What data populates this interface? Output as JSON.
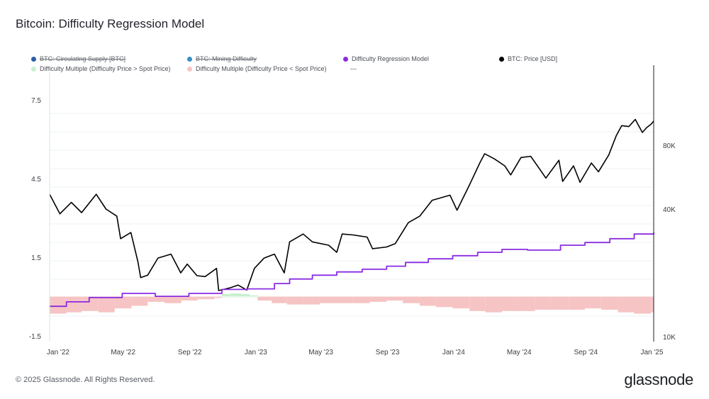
{
  "title": "Bitcoin: Difficulty Regression Model",
  "legend": [
    {
      "label": "BTC: Circulating Supply [BTC]",
      "color": "#2c5ea8",
      "disabled": true
    },
    {
      "label": "BTC: Mining Difficulty",
      "color": "#3a8fc6",
      "disabled": true
    },
    {
      "label": "Difficulty Regression Model",
      "color": "#8a2be2",
      "disabled": false
    },
    {
      "label": "BTC: Price [USD]",
      "color": "#000000",
      "disabled": false
    },
    {
      "label": "Difficulty Multiple (Difficulty Price > Spot Price)",
      "color": "#c8f0cf",
      "disabled": false
    },
    {
      "label": "Difficulty Multiple (Difficulty Price < Spot Price)",
      "color": "#f6c4c4",
      "disabled": false
    },
    {
      "label": "---",
      "color": "",
      "disabled": false
    }
  ],
  "footer": "© 2025 Glassnode. All Rights Reserved.",
  "brand": "glassnode",
  "chart_data": {
    "type": "line",
    "x_tick_labels": [
      "Jan '22",
      "May '22",
      "Sep '22",
      "Jan '23",
      "May '23",
      "Sep '23",
      "Jan '24",
      "May '24",
      "Sep '24",
      "Jan '25"
    ],
    "left_axis_ticks": [
      "7.5",
      "4.5",
      "1.5",
      "-1.5"
    ],
    "left_ylim": [
      -1.5,
      8.5
    ],
    "right_axis_ticks": [
      "80K",
      "40K",
      "10K"
    ],
    "right_ylim_log": [
      10000,
      160000
    ],
    "right_axis_scale": "log",
    "grid": true,
    "legend_position": "top",
    "series": [
      {
        "name": "BTC: Price [USD]",
        "axis": "right",
        "color": "#000000",
        "points": [
          [
            "2022-01-01",
            47000
          ],
          [
            "2022-01-20",
            38000
          ],
          [
            "2022-02-10",
            43000
          ],
          [
            "2022-03-01",
            38500
          ],
          [
            "2022-03-28",
            47000
          ],
          [
            "2022-04-15",
            40000
          ],
          [
            "2022-05-05",
            37000
          ],
          [
            "2022-05-12",
            29000
          ],
          [
            "2022-05-31",
            31000
          ],
          [
            "2022-06-13",
            22500
          ],
          [
            "2022-06-18",
            19000
          ],
          [
            "2022-07-01",
            19500
          ],
          [
            "2022-07-20",
            23500
          ],
          [
            "2022-08-13",
            24500
          ],
          [
            "2022-08-31",
            20000
          ],
          [
            "2022-09-12",
            22000
          ],
          [
            "2022-09-30",
            19400
          ],
          [
            "2022-10-15",
            19200
          ],
          [
            "2022-11-05",
            21000
          ],
          [
            "2022-11-09",
            16500
          ],
          [
            "2022-11-30",
            17000
          ],
          [
            "2022-12-15",
            17500
          ],
          [
            "2022-12-31",
            16600
          ],
          [
            "2023-01-14",
            21000
          ],
          [
            "2023-02-01",
            23500
          ],
          [
            "2023-02-20",
            24500
          ],
          [
            "2023-03-10",
            20000
          ],
          [
            "2023-03-20",
            28000
          ],
          [
            "2023-04-14",
            30500
          ],
          [
            "2023-05-01",
            28000
          ],
          [
            "2023-05-31",
            27000
          ],
          [
            "2023-06-15",
            25000
          ],
          [
            "2023-06-25",
            30500
          ],
          [
            "2023-07-15",
            30200
          ],
          [
            "2023-08-10",
            29500
          ],
          [
            "2023-08-20",
            26000
          ],
          [
            "2023-09-15",
            26500
          ],
          [
            "2023-10-01",
            27500
          ],
          [
            "2023-10-25",
            34500
          ],
          [
            "2023-11-15",
            37000
          ],
          [
            "2023-12-08",
            44000
          ],
          [
            "2024-01-10",
            46500
          ],
          [
            "2024-01-23",
            39500
          ],
          [
            "2024-02-15",
            52000
          ],
          [
            "2024-03-05",
            66000
          ],
          [
            "2024-03-14",
            73000
          ],
          [
            "2024-04-01",
            69000
          ],
          [
            "2024-04-20",
            64000
          ],
          [
            "2024-05-01",
            58000
          ],
          [
            "2024-05-20",
            70000
          ],
          [
            "2024-06-07",
            71000
          ],
          [
            "2024-06-25",
            61000
          ],
          [
            "2024-07-05",
            56000
          ],
          [
            "2024-07-29",
            68000
          ],
          [
            "2024-08-05",
            54000
          ],
          [
            "2024-08-25",
            64000
          ],
          [
            "2024-09-06",
            53500
          ],
          [
            "2024-09-27",
            66000
          ],
          [
            "2024-10-10",
            60000
          ],
          [
            "2024-10-29",
            72000
          ],
          [
            "2024-11-12",
            89000
          ],
          [
            "2024-11-22",
            99000
          ],
          [
            "2024-12-05",
            98000
          ],
          [
            "2024-12-17",
            106000
          ],
          [
            "2024-12-30",
            92000
          ],
          [
            "2025-01-07",
            97000
          ],
          [
            "2025-01-15",
            100500
          ],
          [
            "2025-01-20",
            104000
          ]
        ]
      },
      {
        "name": "Difficulty Regression Model",
        "axis": "right",
        "color": "#8a2be2",
        "points": [
          [
            "2022-01-01",
            13900
          ],
          [
            "2022-02-01",
            14600
          ],
          [
            "2022-03-15",
            15300
          ],
          [
            "2022-05-15",
            16000
          ],
          [
            "2022-07-15",
            15500
          ],
          [
            "2022-09-15",
            16000
          ],
          [
            "2022-11-15",
            16700
          ],
          [
            "2023-01-01",
            16800
          ],
          [
            "2023-02-20",
            17800
          ],
          [
            "2023-03-20",
            18700
          ],
          [
            "2023-05-01",
            19500
          ],
          [
            "2023-06-15",
            20200
          ],
          [
            "2023-08-01",
            20800
          ],
          [
            "2023-09-15",
            21500
          ],
          [
            "2023-10-20",
            22400
          ],
          [
            "2023-12-01",
            23300
          ],
          [
            "2024-01-15",
            24100
          ],
          [
            "2024-03-01",
            25000
          ],
          [
            "2024-04-15",
            25800
          ],
          [
            "2024-06-01",
            25600
          ],
          [
            "2024-08-01",
            27000
          ],
          [
            "2024-09-15",
            27800
          ],
          [
            "2024-10-31",
            29000
          ],
          [
            "2024-12-15",
            30500
          ],
          [
            "2025-01-20",
            31000
          ]
        ]
      },
      {
        "name": "Difficulty Multiple",
        "axis": "left",
        "type": "bar",
        "color_above": "#c8f0cf",
        "color_below": "#f6c4c4",
        "points": [
          [
            "2022-01-01",
            -0.65
          ],
          [
            "2022-02-01",
            -0.6
          ],
          [
            "2022-03-01",
            -0.55
          ],
          [
            "2022-04-01",
            -0.6
          ],
          [
            "2022-05-01",
            -0.45
          ],
          [
            "2022-06-01",
            -0.35
          ],
          [
            "2022-07-01",
            -0.2
          ],
          [
            "2022-08-01",
            -0.25
          ],
          [
            "2022-09-01",
            -0.15
          ],
          [
            "2022-10-01",
            -0.1
          ],
          [
            "2022-11-01",
            -0.05
          ],
          [
            "2022-11-15",
            0.1
          ],
          [
            "2022-12-01",
            0.12
          ],
          [
            "2022-12-20",
            0.1
          ],
          [
            "2023-01-05",
            0.05
          ],
          [
            "2023-01-20",
            -0.15
          ],
          [
            "2023-02-15",
            -0.25
          ],
          [
            "2023-03-15",
            -0.3
          ],
          [
            "2023-04-15",
            -0.3
          ],
          [
            "2023-05-15",
            -0.25
          ],
          [
            "2023-06-15",
            -0.25
          ],
          [
            "2023-07-15",
            -0.25
          ],
          [
            "2023-08-15",
            -0.2
          ],
          [
            "2023-09-15",
            -0.15
          ],
          [
            "2023-10-15",
            -0.25
          ],
          [
            "2023-11-15",
            -0.35
          ],
          [
            "2023-12-15",
            -0.4
          ],
          [
            "2024-01-15",
            -0.45
          ],
          [
            "2024-02-15",
            -0.55
          ],
          [
            "2024-03-15",
            -0.6
          ],
          [
            "2024-04-15",
            -0.55
          ],
          [
            "2024-05-15",
            -0.55
          ],
          [
            "2024-06-15",
            -0.5
          ],
          [
            "2024-07-15",
            -0.5
          ],
          [
            "2024-08-15",
            -0.5
          ],
          [
            "2024-09-15",
            -0.45
          ],
          [
            "2024-10-15",
            -0.5
          ],
          [
            "2024-11-15",
            -0.6
          ],
          [
            "2024-12-15",
            -0.65
          ],
          [
            "2025-01-15",
            -0.6
          ]
        ]
      }
    ]
  }
}
